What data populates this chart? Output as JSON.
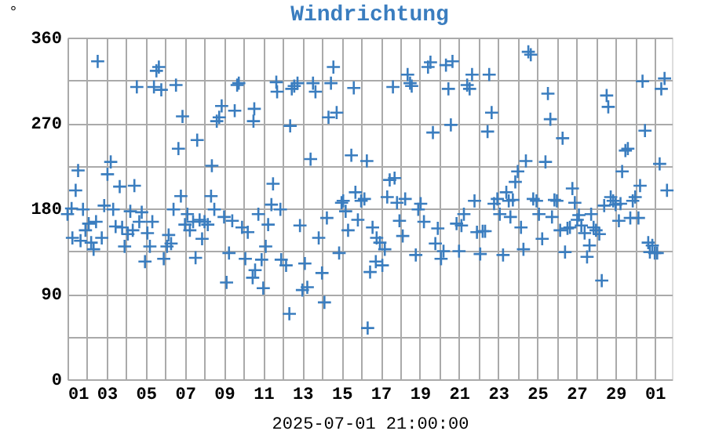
{
  "chart_data": {
    "type": "scatter",
    "title": "Windrichtung",
    "xlabel": "2025-07-01 21:00:00",
    "ylabel": "°",
    "x": [
      "2025-06-01T00:00",
      "2025-06-01T05:00",
      "2025-06-01T06:00",
      "2025-06-01T10:00",
      "2025-06-01T13:00",
      "2025-06-01T16:00",
      "2025-06-01T19:00",
      "2025-06-01T22:00",
      "2025-06-02T02:00",
      "2025-06-02T05:00",
      "2025-06-02T08:00",
      "2025-06-02T11:00",
      "2025-06-02T13:00",
      "2025-06-02T18:00",
      "2025-06-02T21:00",
      "2025-06-03T01:00",
      "2025-06-03T05:00",
      "2025-06-03T08:00",
      "2025-06-03T11:00",
      "2025-06-03T16:00",
      "2025-06-03T19:00",
      "2025-06-03T22:00",
      "2025-06-04T02:00",
      "2025-06-04T05:00",
      "2025-06-04T08:00",
      "2025-06-04T10:00",
      "2025-06-04T13:00",
      "2025-06-04T16:00",
      "2025-06-04T19:00",
      "2025-06-04T23:00",
      "2025-06-05T02:00",
      "2025-06-05T05:00",
      "2025-06-05T08:00",
      "2025-06-05T10:00",
      "2025-06-05T13:00",
      "2025-06-05T16:00",
      "2025-06-05T19:00",
      "2025-06-05T22:00",
      "2025-06-06T02:00",
      "2025-06-06T04:00",
      "2025-06-06T07:00",
      "2025-06-06T10:00",
      "2025-06-06T13:00",
      "2025-06-06T16:00",
      "2025-06-06T19:00",
      "2025-06-06T21:00",
      "2025-06-07T00:00",
      "2025-06-07T03:00",
      "2025-06-07T06:00",
      "2025-06-07T10:00",
      "2025-06-07T13:00",
      "2025-06-07T15:00",
      "2025-06-07T18:00",
      "2025-06-07T21:00",
      "2025-06-08T00:00",
      "2025-06-08T04:00",
      "2025-06-08T08:00",
      "2025-06-08T09:00",
      "2025-06-08T12:00",
      "2025-06-08T15:00",
      "2025-06-08T18:00",
      "2025-06-08T21:00",
      "2025-06-09T00:00",
      "2025-06-09T03:00",
      "2025-06-09T06:00",
      "2025-06-09T10:00",
      "2025-06-09T13:00",
      "2025-06-09T16:00",
      "2025-06-09T18:00",
      "2025-06-09T22:00",
      "2025-06-10T02:00",
      "2025-06-10T05:00",
      "2025-06-10T11:00",
      "2025-06-10T14:00",
      "2025-06-10T13:00",
      "2025-06-10T12:00",
      "2025-06-10T18:00",
      "2025-06-10T22:00",
      "2025-06-11T00:00",
      "2025-06-11T03:00",
      "2025-06-11T06:00",
      "2025-06-11T10:00",
      "2025-06-11T12:00",
      "2025-06-11T16:00",
      "2025-06-11T17:00",
      "2025-06-11T21:00",
      "2025-06-11T22:00",
      "2025-06-12T04:00",
      "2025-06-12T08:00",
      "2025-06-12T09:00",
      "2025-06-12T11:00",
      "2025-06-12T14:00",
      "2025-06-12T18:00",
      "2025-06-12T21:00",
      "2025-06-13T00:00",
      "2025-06-13T03:00",
      "2025-06-13T06:00",
      "2025-06-13T10:00",
      "2025-06-13T13:00",
      "2025-06-13T16:00",
      "2025-06-13T20:00",
      "2025-06-14T00:00",
      "2025-06-14T03:00",
      "2025-06-14T06:00",
      "2025-06-14T08:00",
      "2025-06-14T11:00",
      "2025-06-14T14:00",
      "2025-06-14T18:00",
      "2025-06-14T21:00",
      "2025-06-15T00:00",
      "2025-06-15T02:00",
      "2025-06-15T05:00",
      "2025-06-15T08:00",
      "2025-06-15T12:00",
      "2025-06-15T15:00",
      "2025-06-15T17:00",
      "2025-06-15T20:00",
      "2025-06-16T00:00",
      "2025-06-16T04:00",
      "2025-06-16T07:00",
      "2025-06-16T08:00",
      "2025-06-16T11:00",
      "2025-06-16T14:00",
      "2025-06-16T18:00",
      "2025-06-16T19:00",
      "2025-06-16T23:00",
      "2025-06-17T02:00",
      "2025-06-17T05:00",
      "2025-06-17T08:00",
      "2025-06-17T11:00",
      "2025-06-17T15:00",
      "2025-06-17T17:00",
      "2025-06-17T20:00",
      "2025-06-17T23:00",
      "2025-06-18T03:00",
      "2025-06-18T06:00",
      "2025-06-18T09:00",
      "2025-06-18T12:00",
      "2025-06-18T14:00",
      "2025-06-18T19:00",
      "2025-06-18T22:00",
      "2025-06-19T01:00",
      "2025-06-19T05:00",
      "2025-06-19T10:00",
      "2025-06-19T13:00",
      "2025-06-19T16:00",
      "2025-06-19T19:00",
      "2025-06-19T22:00",
      "2025-06-20T02:00",
      "2025-06-20T05:00",
      "2025-06-20T08:00",
      "2025-06-20T11:00",
      "2025-06-20T14:00",
      "2025-06-20T16:00",
      "2025-06-20T21:00",
      "2025-06-21T00:00",
      "2025-06-21T03:00",
      "2025-06-21T06:00",
      "2025-06-21T10:00",
      "2025-06-21T13:00",
      "2025-06-21T16:00",
      "2025-06-21T19:00",
      "2025-06-21T22:00",
      "2025-06-22T02:00",
      "2025-06-22T05:00",
      "2025-06-22T08:00",
      "2025-06-22T11:00",
      "2025-06-22T13:00",
      "2025-06-22T16:00",
      "2025-06-22T19:00",
      "2025-06-22T23:00",
      "2025-06-23T02:00",
      "2025-06-23T06:00",
      "2025-06-23T10:00",
      "2025-06-23T13:00",
      "2025-06-23T15:00",
      "2025-06-23T18:00",
      "2025-06-23T21:00",
      "2025-06-24T00:00",
      "2025-06-24T04:00",
      "2025-06-24T07:00",
      "2025-06-24T10:00",
      "2025-06-24T13:00",
      "2025-06-24T16:00",
      "2025-06-24T19:00",
      "2025-06-24T23:00",
      "2025-06-25T02:00",
      "2025-06-25T06:00",
      "2025-06-25T10:00",
      "2025-06-25T13:00",
      "2025-06-25T16:00",
      "2025-06-25T18:00",
      "2025-06-25T21:00",
      "2025-06-26T00:00",
      "2025-06-26T04:00",
      "2025-06-26T07:00",
      "2025-06-26T10:00",
      "2025-06-26T13:00",
      "2025-06-26T16:00",
      "2025-06-26T19:00",
      "2025-06-26T22:00",
      "2025-06-27T01:00",
      "2025-06-27T03:00",
      "2025-06-27T06:00",
      "2025-06-27T10:00",
      "2025-06-27T13:00",
      "2025-06-27T16:00",
      "2025-06-27T18:00",
      "2025-06-27T21:00",
      "2025-06-28T00:00",
      "2025-06-28T04:00",
      "2025-06-28T07:00",
      "2025-06-28T10:00",
      "2025-06-28T13:00",
      "2025-06-28T15:00",
      "2025-06-28T18:00",
      "2025-06-28T21:00",
      "2025-06-29T00:00",
      "2025-06-29T04:00",
      "2025-06-29T06:00",
      "2025-06-29T08:00",
      "2025-06-29T12:00",
      "2025-06-29T15:00",
      "2025-06-29T18:00",
      "2025-06-29T21:00",
      "2025-06-30T00:00",
      "2025-06-30T04:00",
      "2025-06-30T06:00",
      "2025-06-30T09:00",
      "2025-06-30T12:00",
      "2025-06-30T16:00",
      "2025-06-30T18:00",
      "2025-06-30T21:00",
      "2025-07-01T00:00",
      "2025-07-01T03:00",
      "2025-07-01T06:00",
      "2025-07-01T08:00",
      "2025-07-01T12:00",
      "2025-07-01T15:00"
    ],
    "values": [
      174,
      180,
      149,
      199,
      220,
      146,
      179,
      157,
      164,
      144,
      137,
      166,
      335,
      149,
      183,
      216,
      229,
      179,
      161,
      203,
      160,
      140,
      153,
      177,
      157,
      204,
      308,
      166,
      176,
      124,
      154,
      140,
      166,
      308,
      325,
      329,
      305,
      127,
      140,
      152,
      143,
      179,
      310,
      243,
      193,
      277,
      163,
      174,
      157,
      166,
      128,
      252,
      168,
      148,
      166,
      163,
      193,
      225,
      179,
      272,
      276,
      288,
      171,
      102,
      133,
      167,
      283,
      310,
      312,
      160,
      127,
      155,
      107,
      115,
      285,
      272,
      174,
      126,
      96,
      140,
      163,
      184,
      206,
      313,
      303,
      179,
      126,
      120,
      69,
      267,
      306,
      309,
      312,
      162,
      94,
      122,
      97,
      232,
      312,
      303,
      149,
      112,
      81,
      170,
      276,
      312,
      329,
      281,
      133,
      186,
      188,
      177,
      157,
      236,
      307,
      197,
      168,
      188,
      190,
      230,
      54,
      113,
      160,
      124,
      149,
      144,
      120,
      137,
      192,
      210,
      308,
      212,
      186,
      167,
      151,
      190,
      321,
      312,
      309,
      131,
      179,
      185,
      166,
      329,
      334,
      260,
      143,
      159,
      127,
      135,
      331,
      306,
      268,
      335,
      164,
      135,
      162,
      174,
      310,
      306,
      321,
      188,
      155,
      132,
      156,
      156,
      261,
      321,
      281,
      185,
      190,
      174,
      131,
      197,
      188,
      171,
      189,
      208,
      219,
      160,
      137,
      230,
      345,
      342,
      190,
      188,
      174,
      148,
      229,
      301,
      274,
      171,
      189,
      188,
      157,
      254,
      134,
      159,
      160,
      201,
      186,
      168,
      173,
      162,
      154,
      129,
      141,
      174,
      160,
      157,
      153,
      104,
      183,
      299,
      287,
      192,
      188,
      184,
      167,
      185,
      219,
      241,
      243,
      170,
      188,
      192,
      170,
      204,
      314,
      262,
      144,
      134,
      141,
      133,
      133,
      227,
      306,
      317,
      199
    ],
    "color": "#3a7dbf",
    "marker": "cross",
    "xlim": [
      "2025-06-01T00:00",
      "2025-07-01T21:00"
    ],
    "xticks": [
      {
        "value": "2025-06-01",
        "label": "01"
      },
      {
        "value": "2025-06-02",
        "label": null
      },
      {
        "value": "2025-06-03",
        "label": "03"
      },
      {
        "value": "2025-06-04",
        "label": null
      },
      {
        "value": "2025-06-05",
        "label": "05"
      },
      {
        "value": "2025-06-06",
        "label": null
      },
      {
        "value": "2025-06-07",
        "label": "07"
      },
      {
        "value": "2025-06-08",
        "label": null
      },
      {
        "value": "2025-06-09",
        "label": "09"
      },
      {
        "value": "2025-06-10",
        "label": null
      },
      {
        "value": "2025-06-11",
        "label": "11"
      },
      {
        "value": "2025-06-12",
        "label": null
      },
      {
        "value": "2025-06-13",
        "label": "13"
      },
      {
        "value": "2025-06-14",
        "label": null
      },
      {
        "value": "2025-06-15",
        "label": "15"
      },
      {
        "value": "2025-06-16",
        "label": null
      },
      {
        "value": "2025-06-17",
        "label": "17"
      },
      {
        "value": "2025-06-18",
        "label": null
      },
      {
        "value": "2025-06-19",
        "label": "19"
      },
      {
        "value": "2025-06-20",
        "label": null
      },
      {
        "value": "2025-06-21",
        "label": "21"
      },
      {
        "value": "2025-06-22",
        "label": null
      },
      {
        "value": "2025-06-23",
        "label": "23"
      },
      {
        "value": "2025-06-24",
        "label": null
      },
      {
        "value": "2025-06-25",
        "label": "25"
      },
      {
        "value": "2025-06-26",
        "label": null
      },
      {
        "value": "2025-06-27",
        "label": "27"
      },
      {
        "value": "2025-06-28",
        "label": null
      },
      {
        "value": "2025-06-29",
        "label": "29"
      },
      {
        "value": "2025-06-30",
        "label": null
      },
      {
        "value": "2025-07-01",
        "label": "01"
      }
    ],
    "ylim": [
      0,
      360
    ],
    "yticks": [
      0,
      {
        "value": 45,
        "label": null
      },
      90,
      {
        "value": 135,
        "label": null
      },
      180,
      {
        "value": 225,
        "label": null
      },
      270,
      {
        "value": 315,
        "label": null
      },
      360
    ],
    "grid": true
  }
}
